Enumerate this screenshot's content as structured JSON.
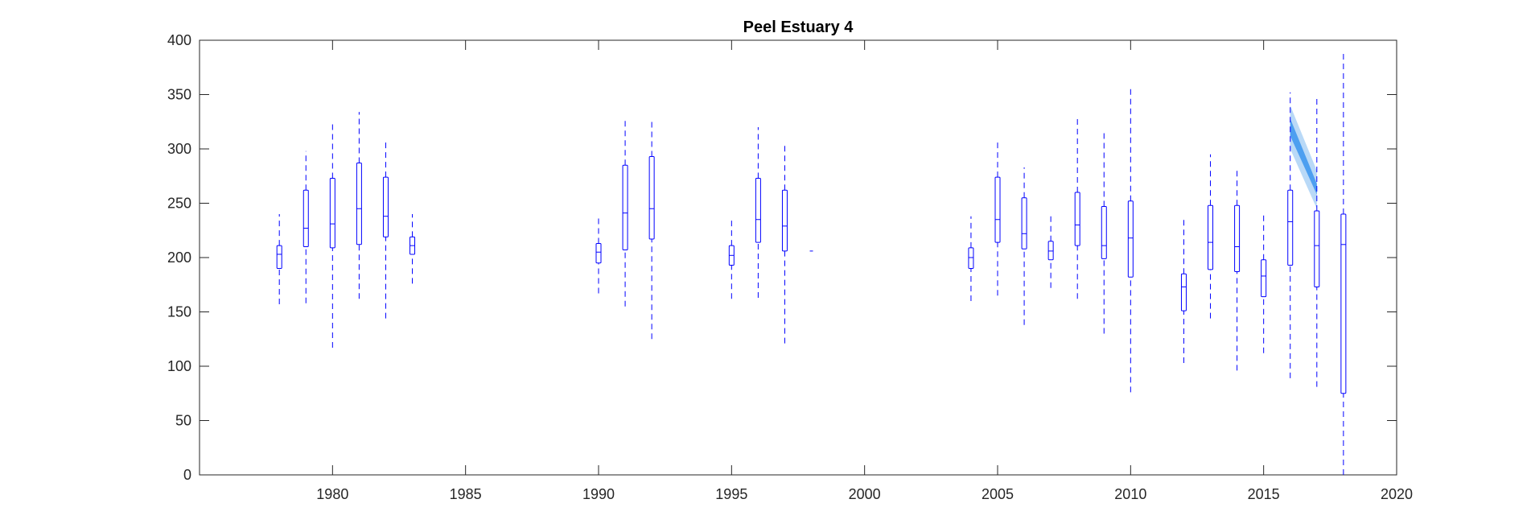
{
  "chart_data": {
    "type": "box",
    "title": "Peel Estuary 4",
    "xlabel": "",
    "ylabel": "",
    "xlim": [
      1975,
      2020
    ],
    "ylim": [
      0,
      400
    ],
    "xticks": [
      1980,
      1985,
      1990,
      1995,
      2000,
      2005,
      2010,
      2015,
      2020
    ],
    "yticks": [
      0,
      50,
      100,
      150,
      200,
      250,
      300,
      350,
      400
    ],
    "grid": false,
    "box_color": "#0000ff",
    "band_color_inner": "#4d9ff0",
    "band_color_outer": "#b9d9f7",
    "boxes": [
      {
        "year": 1978,
        "whisker_low": 157,
        "q1": 190,
        "median": 203,
        "q3": 211,
        "whisker_high": 240
      },
      {
        "year": 1979,
        "whisker_low": 158,
        "q1": 210,
        "median": 227,
        "q3": 262,
        "whisker_high": 298
      },
      {
        "year": 1980,
        "whisker_low": 117,
        "q1": 209,
        "median": 231,
        "q3": 273,
        "whisker_high": 323
      },
      {
        "year": 1981,
        "whisker_low": 162,
        "q1": 212,
        "median": 245,
        "q3": 287,
        "whisker_high": 334
      },
      {
        "year": 1982,
        "whisker_low": 144,
        "q1": 219,
        "median": 238,
        "q3": 274,
        "whisker_high": 308
      },
      {
        "year": 1983,
        "whisker_low": 176,
        "q1": 203,
        "median": 211,
        "q3": 219,
        "whisker_high": 240
      },
      {
        "year": 1990,
        "whisker_low": 167,
        "q1": 195,
        "median": 205,
        "q3": 213,
        "whisker_high": 238
      },
      {
        "year": 1991,
        "whisker_low": 155,
        "q1": 207,
        "median": 241,
        "q3": 285,
        "whisker_high": 328
      },
      {
        "year": 1992,
        "whisker_low": 125,
        "q1": 217,
        "median": 245,
        "q3": 293,
        "whisker_high": 326
      },
      {
        "year": 1995,
        "whisker_low": 162,
        "q1": 193,
        "median": 202,
        "q3": 211,
        "whisker_high": 237
      },
      {
        "year": 1996,
        "whisker_low": 163,
        "q1": 214,
        "median": 235,
        "q3": 273,
        "whisker_high": 320
      },
      {
        "year": 1997,
        "whisker_low": 121,
        "q1": 206,
        "median": 229,
        "q3": 262,
        "whisker_high": 305
      },
      {
        "year": 1998,
        "whisker_low": 206,
        "q1": 206,
        "median": 206,
        "q3": 206,
        "whisker_high": 206
      },
      {
        "year": 2004,
        "whisker_low": 160,
        "q1": 190,
        "median": 200,
        "q3": 209,
        "whisker_high": 238
      },
      {
        "year": 2005,
        "whisker_low": 165,
        "q1": 214,
        "median": 235,
        "q3": 274,
        "whisker_high": 308
      },
      {
        "year": 2006,
        "whisker_low": 138,
        "q1": 208,
        "median": 222,
        "q3": 255,
        "whisker_high": 283
      },
      {
        "year": 2007,
        "whisker_low": 172,
        "q1": 198,
        "median": 206,
        "q3": 215,
        "whisker_high": 241
      },
      {
        "year": 2008,
        "whisker_low": 162,
        "q1": 211,
        "median": 230,
        "q3": 260,
        "whisker_high": 328
      },
      {
        "year": 2009,
        "whisker_low": 130,
        "q1": 199,
        "median": 211,
        "q3": 247,
        "whisker_high": 317
      },
      {
        "year": 2010,
        "whisker_low": 76,
        "q1": 182,
        "median": 218,
        "q3": 252,
        "whisker_high": 356
      },
      {
        "year": 2012,
        "whisker_low": 103,
        "q1": 151,
        "median": 173,
        "q3": 185,
        "whisker_high": 235
      },
      {
        "year": 2013,
        "whisker_low": 144,
        "q1": 189,
        "median": 214,
        "q3": 248,
        "whisker_high": 295
      },
      {
        "year": 2014,
        "whisker_low": 96,
        "q1": 187,
        "median": 210,
        "q3": 248,
        "whisker_high": 283
      },
      {
        "year": 2015,
        "whisker_low": 112,
        "q1": 164,
        "median": 183,
        "q3": 198,
        "whisker_high": 242
      },
      {
        "year": 2016,
        "whisker_low": 89,
        "q1": 193,
        "median": 233,
        "q3": 262,
        "whisker_high": 352
      },
      {
        "year": 2017,
        "whisker_low": 81,
        "q1": 173,
        "median": 211,
        "q3": 243,
        "whisker_high": 347
      },
      {
        "year": 2018,
        "whisker_low": 0,
        "q1": 75,
        "median": 212,
        "q3": 240,
        "whisker_high": 391
      }
    ],
    "trend_band": {
      "x": [
        2016,
        2017
      ],
      "outer_upper": [
        340,
        280
      ],
      "outer_lower": [
        300,
        245
      ],
      "inner_upper": [
        328,
        268
      ],
      "inner_lower": [
        312,
        258
      ]
    }
  }
}
